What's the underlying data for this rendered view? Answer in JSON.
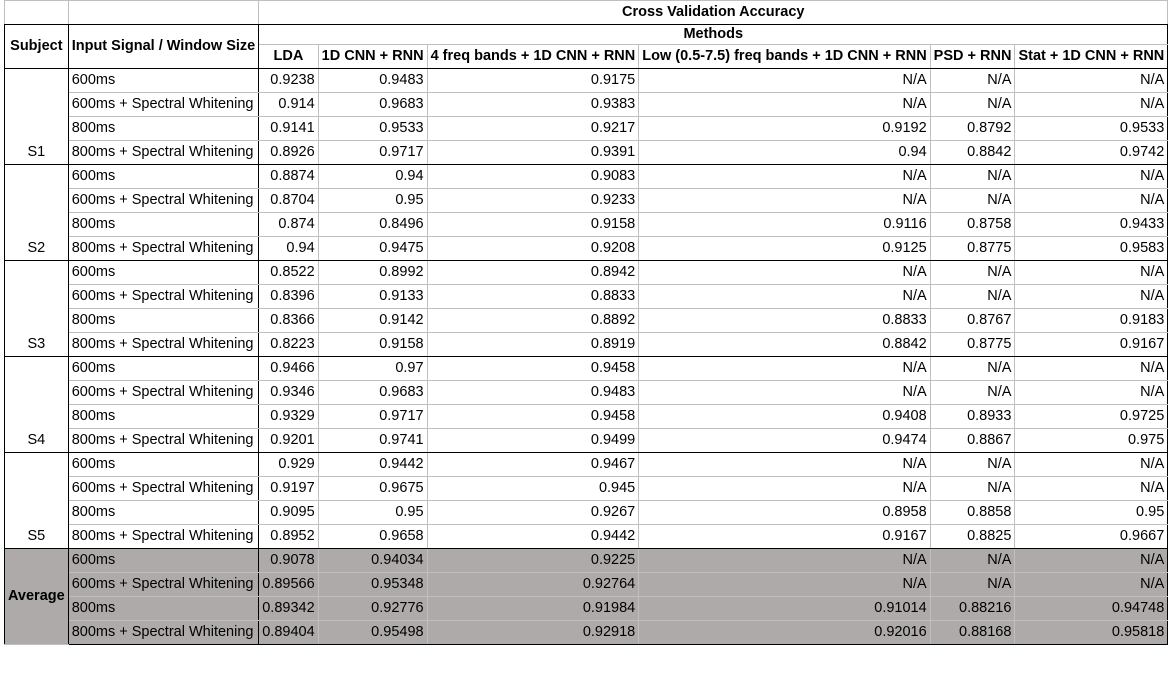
{
  "title": "Cross Validation Accuracy",
  "headers": {
    "subject": "Subject",
    "input": "Input Signal / Window Size",
    "methods": "Methods",
    "columns": [
      "LDA",
      "1D CNN + RNN",
      "4 freq bands + 1D CNN + RNN",
      "Low (0.5-7.5) freq bands + 1D CNN + RNN",
      "PSD + RNN",
      "Stat + 1D CNN + RNN"
    ]
  },
  "groups": [
    {
      "subject": "S1",
      "rows": [
        {
          "label": "600ms",
          "values": [
            "0.9238",
            "0.9483",
            "0.9175",
            "N/A",
            "N/A",
            "N/A"
          ]
        },
        {
          "label": "600ms + Spectral Whitening",
          "values": [
            "0.914",
            "0.9683",
            "0.9383",
            "N/A",
            "N/A",
            "N/A"
          ]
        },
        {
          "label": "800ms",
          "values": [
            "0.9141",
            "0.9533",
            "0.9217",
            "0.9192",
            "0.8792",
            "0.9533"
          ]
        },
        {
          "label": "800ms + Spectral Whitening",
          "values": [
            "0.8926",
            "0.9717",
            "0.9391",
            "0.94",
            "0.8842",
            "0.9742"
          ]
        }
      ]
    },
    {
      "subject": "S2",
      "rows": [
        {
          "label": "600ms",
          "values": [
            "0.8874",
            "0.94",
            "0.9083",
            "N/A",
            "N/A",
            "N/A"
          ]
        },
        {
          "label": "600ms + Spectral Whitening",
          "values": [
            "0.8704",
            "0.95",
            "0.9233",
            "N/A",
            "N/A",
            "N/A"
          ]
        },
        {
          "label": "800ms",
          "values": [
            "0.874",
            "0.8496",
            "0.9158",
            "0.9116",
            "0.8758",
            "0.9433"
          ]
        },
        {
          "label": "800ms + Spectral Whitening",
          "values": [
            "0.94",
            "0.9475",
            "0.9208",
            "0.9125",
            "0.8775",
            "0.9583"
          ]
        }
      ]
    },
    {
      "subject": "S3",
      "rows": [
        {
          "label": "600ms",
          "values": [
            "0.8522",
            "0.8992",
            "0.8942",
            "N/A",
            "N/A",
            "N/A"
          ]
        },
        {
          "label": "600ms + Spectral Whitening",
          "values": [
            "0.8396",
            "0.9133",
            "0.8833",
            "N/A",
            "N/A",
            "N/A"
          ]
        },
        {
          "label": "800ms",
          "values": [
            "0.8366",
            "0.9142",
            "0.8892",
            "0.8833",
            "0.8767",
            "0.9183"
          ]
        },
        {
          "label": "800ms + Spectral Whitening",
          "values": [
            "0.8223",
            "0.9158",
            "0.8919",
            "0.8842",
            "0.8775",
            "0.9167"
          ]
        }
      ]
    },
    {
      "subject": "S4",
      "rows": [
        {
          "label": "600ms",
          "values": [
            "0.9466",
            "0.97",
            "0.9458",
            "N/A",
            "N/A",
            "N/A"
          ]
        },
        {
          "label": "600ms + Spectral Whitening",
          "values": [
            "0.9346",
            "0.9683",
            "0.9483",
            "N/A",
            "N/A",
            "N/A"
          ]
        },
        {
          "label": "800ms",
          "values": [
            "0.9329",
            "0.9717",
            "0.9458",
            "0.9408",
            "0.8933",
            "0.9725"
          ]
        },
        {
          "label": "800ms + Spectral Whitening",
          "values": [
            "0.9201",
            "0.9741",
            "0.9499",
            "0.9474",
            "0.8867",
            "0.975"
          ]
        }
      ]
    },
    {
      "subject": "S5",
      "rows": [
        {
          "label": "600ms",
          "values": [
            "0.929",
            "0.9442",
            "0.9467",
            "N/A",
            "N/A",
            "N/A"
          ]
        },
        {
          "label": "600ms + Spectral Whitening",
          "values": [
            "0.9197",
            "0.9675",
            "0.945",
            "N/A",
            "N/A",
            "N/A"
          ]
        },
        {
          "label": "800ms",
          "values": [
            "0.9095",
            "0.95",
            "0.9267",
            "0.8958",
            "0.8858",
            "0.95"
          ]
        },
        {
          "label": "800ms + Spectral Whitening",
          "values": [
            "0.8952",
            "0.9658",
            "0.9442",
            "0.9167",
            "0.8825",
            "0.9667"
          ]
        }
      ]
    },
    {
      "subject": "Average",
      "average": true,
      "rows": [
        {
          "label": "600ms",
          "values": [
            "0.9078",
            "0.94034",
            "0.9225",
            "N/A",
            "N/A",
            "N/A"
          ]
        },
        {
          "label": "600ms + Spectral Whitening",
          "values": [
            "0.89566",
            "0.95348",
            "0.92764",
            "N/A",
            "N/A",
            "N/A"
          ]
        },
        {
          "label": "800ms",
          "values": [
            "0.89342",
            "0.92776",
            "0.91984",
            "0.91014",
            "0.88216",
            "0.94748"
          ]
        },
        {
          "label": "800ms + Spectral Whitening",
          "values": [
            "0.89404",
            "0.95498",
            "0.92918",
            "0.92016",
            "0.88168",
            "0.95818"
          ]
        }
      ]
    }
  ]
}
